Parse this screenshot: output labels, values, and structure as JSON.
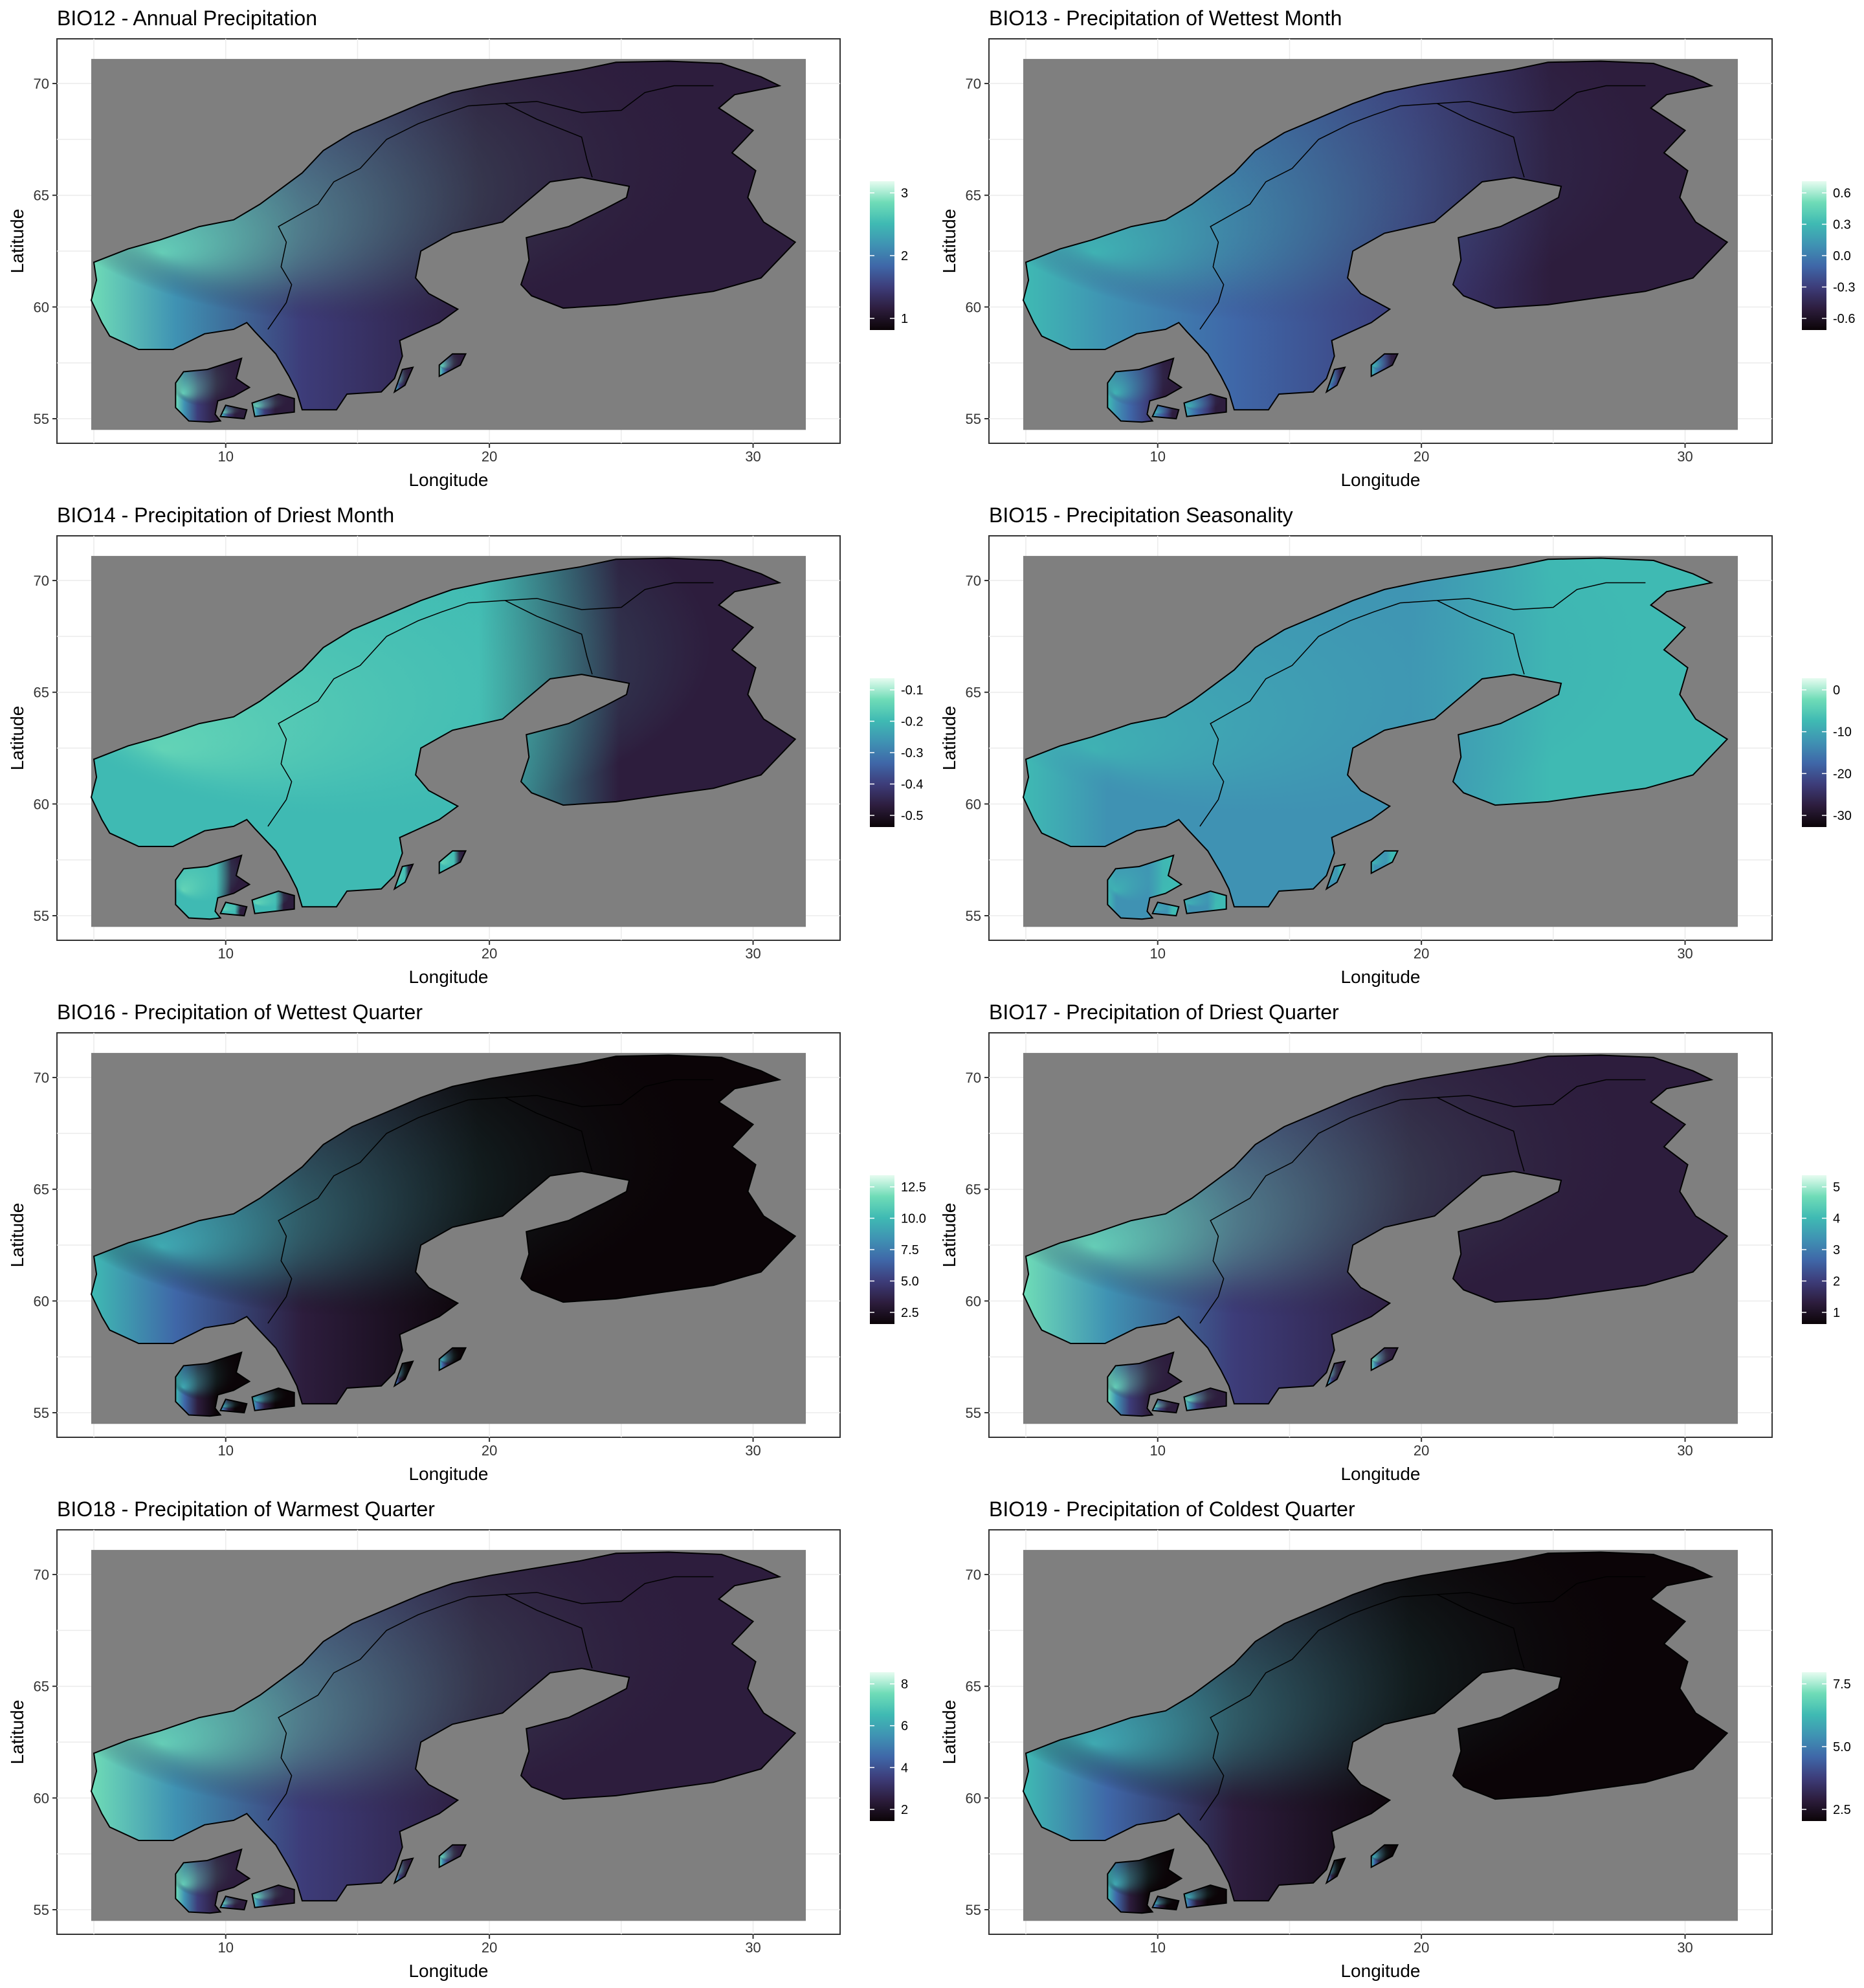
{
  "colors": {
    "ocean": "#7f7f7f",
    "coast": "#000000",
    "colormap": [
      "#0b0407",
      "#2d1d3d",
      "#3d3c79",
      "#3f67a8",
      "#3f92b3",
      "#3fbab3",
      "#6fdcb7",
      "#e6fcf0"
    ]
  },
  "axes": {
    "x_label": "Longitude",
    "y_label": "Latitude",
    "x_ticks": [
      "10",
      "20",
      "30"
    ],
    "y_ticks": [
      "55",
      "60",
      "65",
      "70"
    ]
  },
  "panels": [
    {
      "id": "bio12",
      "title": "BIO12 - Annual Precipitation",
      "legend_ticks": [
        "3",
        "2",
        "1"
      ],
      "field": "west_wet"
    },
    {
      "id": "bio13",
      "title": "BIO13 - Precipitation of Wettest Month",
      "legend_ticks": [
        "0.6",
        "0.3",
        "0.0",
        "-0.3",
        "-0.6"
      ],
      "field": "mid_blue"
    },
    {
      "id": "bio14",
      "title": "BIO14 - Precipitation of Driest Month",
      "legend_ticks": [
        "-0.1",
        "-0.2",
        "-0.3",
        "-0.4",
        "-0.5"
      ],
      "field": "teal_bright"
    },
    {
      "id": "bio15",
      "title": "BIO15 - Precipitation Seasonality",
      "legend_ticks": [
        "0",
        "-10",
        "-20",
        "-30"
      ],
      "field": "teal"
    },
    {
      "id": "bio16",
      "title": "BIO16 - Precipitation of Wettest Quarter",
      "legend_ticks": [
        "12.5",
        "10.0",
        "7.5",
        "5.0",
        "2.5"
      ],
      "field": "dark_west"
    },
    {
      "id": "bio17",
      "title": "BIO17 - Precipitation of Driest Quarter",
      "legend_ticks": [
        "5",
        "4",
        "3",
        "2",
        "1"
      ],
      "field": "west_wet"
    },
    {
      "id": "bio18",
      "title": "BIO18 - Precipitation of Warmest Quarter",
      "legend_ticks": [
        "8",
        "6",
        "4",
        "2"
      ],
      "field": "west_wet"
    },
    {
      "id": "bio19",
      "title": "BIO19 - Precipitation of Coldest Quarter",
      "legend_ticks": [
        "7.5",
        "5.0",
        "2.5"
      ],
      "field": "dark_west"
    }
  ]
}
